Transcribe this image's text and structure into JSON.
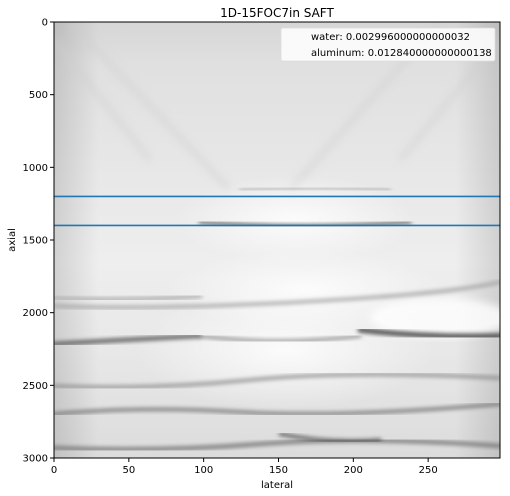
{
  "chart_data": {
    "type": "heatmap",
    "title": "1D-15FOC7in SAFT",
    "xlabel": "lateral",
    "ylabel": "axial",
    "xlim": [
      0,
      298
    ],
    "ylim": [
      3000,
      0
    ],
    "xticks": [
      0,
      50,
      100,
      150,
      200,
      250
    ],
    "yticks": [
      0,
      500,
      1000,
      1500,
      2000,
      2500,
      3000
    ],
    "colormap": "grayscale, light gray background with darker reflector bands",
    "series": [
      {
        "name": "water: 0.002996000000000032",
        "type": "hline",
        "y": 1200,
        "color": "#1f77b4"
      },
      {
        "name": "aluminum: 0.012840000000000138",
        "type": "hline",
        "y": 1400,
        "color": "#1f77b4"
      }
    ],
    "legend": {
      "placement": "top-right",
      "entries": [
        "water: 0.002996000000000032",
        "aluminum: 0.012840000000000138"
      ]
    }
  }
}
